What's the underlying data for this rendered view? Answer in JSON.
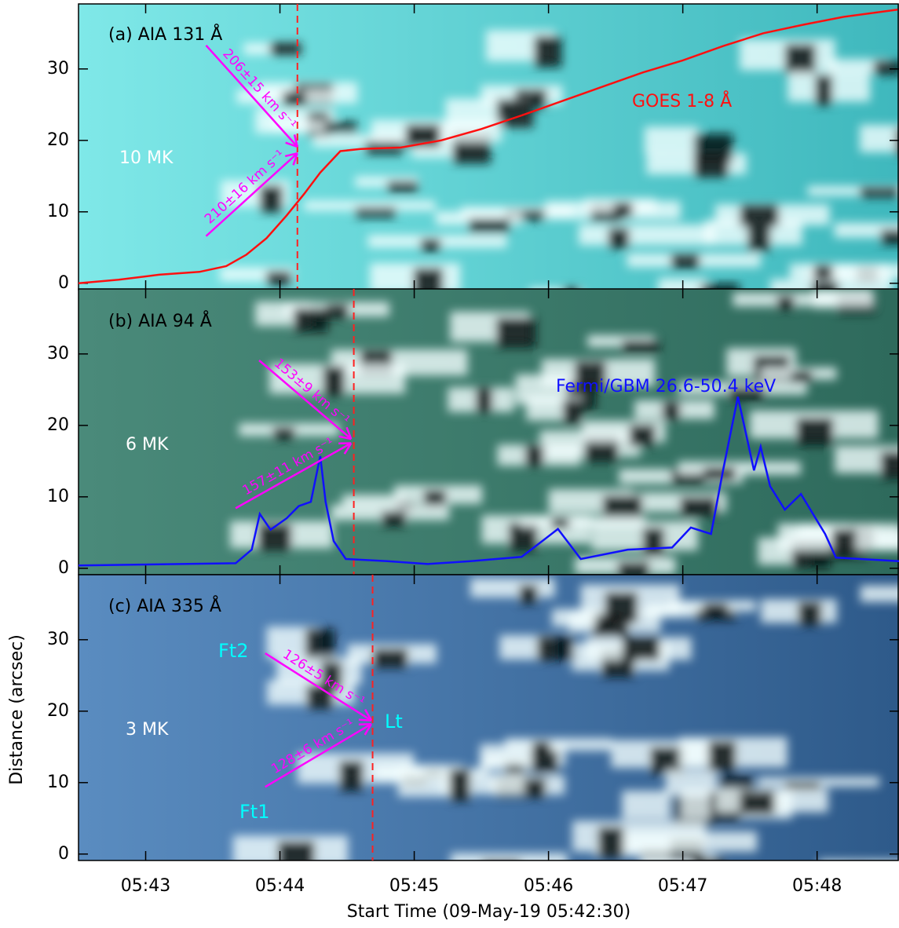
{
  "chart_data": [
    {
      "type": "line",
      "title": "(a) AIA 131 Å",
      "temperature": "10 MK",
      "xlim": [
        0,
        6.11
      ],
      "ylim": [
        -0.9,
        39.1
      ],
      "yticks": [
        0,
        10,
        20,
        30
      ],
      "background": [
        "#7fe8e8",
        "#3fb8bd"
      ],
      "series": [
        {
          "name": "GOES 1-8 Å",
          "color": "#ff1010",
          "x": [
            0,
            0.3,
            0.6,
            0.9,
            1.1,
            1.25,
            1.4,
            1.55,
            1.68,
            1.8,
            1.95,
            2.1,
            2.4,
            2.7,
            3.0,
            3.3,
            3.6,
            3.9,
            4.2,
            4.5,
            4.8,
            5.1,
            5.4,
            5.7,
            6.1
          ],
          "values": [
            0,
            0.5,
            1.2,
            1.6,
            2.4,
            4,
            6.3,
            9.5,
            12.5,
            15.5,
            18.5,
            18.8,
            19,
            20,
            21.6,
            23.5,
            25.5,
            27.5,
            29.5,
            31.2,
            33.2,
            35,
            36.2,
            37.3,
            38.3
          ]
        }
      ],
      "marker_x": 1.63,
      "marker_color": "#ff2020",
      "arrows": [
        {
          "from": [
            0.95,
            33.3
          ],
          "to": [
            1.63,
            19.1
          ],
          "label": "206±15 km s⁻¹",
          "color": "#ff00ff"
        },
        {
          "from": [
            0.95,
            6.6
          ],
          "to": [
            1.63,
            18.2
          ],
          "label": "210±16 km s⁻¹",
          "color": "#ff00ff"
        }
      ]
    },
    {
      "type": "line",
      "title": "(b) AIA 94 Å",
      "temperature": "6 MK",
      "xlim": [
        0,
        6.11
      ],
      "ylim": [
        -0.9,
        39.1
      ],
      "yticks": [
        0,
        10,
        20,
        30
      ],
      "background": [
        "#4a8a7a",
        "#2e6a5c"
      ],
      "series": [
        {
          "name": "Fermi/GBM 26.6-50.4 keV",
          "color": "#1010ff",
          "x": [
            0,
            1.17,
            1.29,
            1.35,
            1.43,
            1.55,
            1.64,
            1.73,
            1.8,
            1.84,
            1.9,
            1.99,
            2.3,
            2.6,
            2.92,
            3.3,
            3.57,
            3.74,
            4.09,
            4.42,
            4.56,
            4.71,
            4.8,
            4.91,
            5.03,
            5.08,
            5.15,
            5.26,
            5.38,
            5.56,
            5.64,
            6.11
          ],
          "values": [
            0.4,
            0.7,
            2.6,
            7.6,
            5.4,
            7,
            8.7,
            9.3,
            15.7,
            9.3,
            3.8,
            1.3,
            1,
            0.6,
            1,
            1.6,
            5.5,
            1.3,
            2.6,
            2.9,
            5.7,
            4.8,
            13.7,
            24,
            13.7,
            17,
            11.5,
            8.2,
            10.4,
            4.8,
            1.5,
            1
          ]
        }
      ],
      "marker_x": 2.05,
      "marker_color": "#ff2020",
      "arrows": [
        {
          "from": [
            1.345,
            29.1
          ],
          "to": [
            2.03,
            18.1
          ],
          "label": "153±9 km s⁻¹",
          "color": "#ff00ff"
        },
        {
          "from": [
            1.17,
            8.4
          ],
          "to": [
            2.03,
            17.5
          ],
          "label": "157±11 km s⁻¹",
          "color": "#ff00ff"
        }
      ]
    },
    {
      "type": "line",
      "title": "(c) AIA 335 Å",
      "temperature": "3 MK",
      "xlim": [
        0,
        6.11
      ],
      "ylim": [
        -0.9,
        39.1
      ],
      "yticks": [
        0,
        10,
        20,
        30
      ],
      "xticks": [
        {
          "value": 0.5,
          "label": "05:43"
        },
        {
          "value": 1.5,
          "label": "05:44"
        },
        {
          "value": 2.5,
          "label": "05:45"
        },
        {
          "value": 3.5,
          "label": "05:46"
        },
        {
          "value": 4.5,
          "label": "05:47"
        },
        {
          "value": 5.5,
          "label": "05:48"
        }
      ],
      "xlabel": "Start Time (09-May-19 05:42:30)",
      "ylabel": "Distance (arcsec)",
      "background": [
        "#5a8cc0",
        "#2e5a8a"
      ],
      "series": [],
      "marker_x": 2.19,
      "marker_color": "#ff2020",
      "points": [
        {
          "label": "Ft2",
          "color": "#00ffff"
        },
        {
          "label": "Lt",
          "color": "#00ffff"
        },
        {
          "label": "Ft1",
          "color": "#00ffff"
        }
      ],
      "arrows": [
        {
          "from": [
            1.39,
            28.1
          ],
          "to": [
            2.18,
            18.7
          ],
          "label": "126±5 km s⁻¹",
          "color": "#ff00ff"
        },
        {
          "from": [
            1.39,
            9.4
          ],
          "to": [
            2.18,
            18.2
          ],
          "label": "128±6 km s⁻¹",
          "color": "#ff00ff"
        }
      ]
    }
  ]
}
